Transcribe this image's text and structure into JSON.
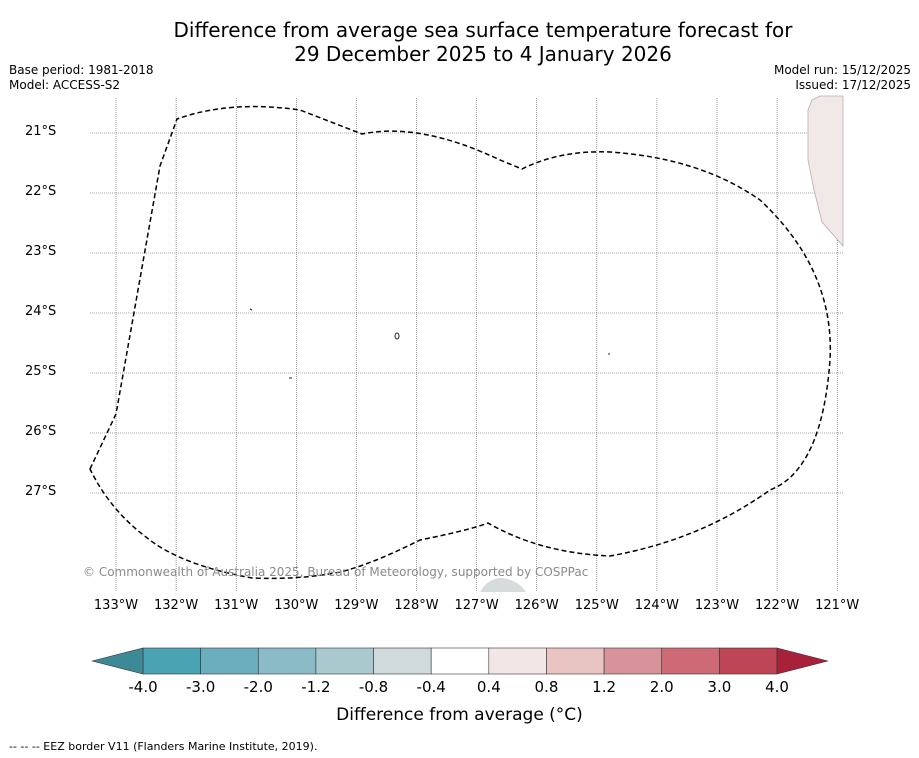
{
  "title_line1": "Difference from average sea surface temperature forecast for",
  "title_line2": "29 December 2025 to 4 January 2026",
  "base_period": "Base period: 1981-2018",
  "model": "Model: ACCESS-S2",
  "model_run": "Model run: 15/12/2025",
  "issued": "Issued: 17/12/2025",
  "latitudes": [
    "21°S",
    "22°S",
    "23°S",
    "24°S",
    "25°S",
    "26°S",
    "27°S"
  ],
  "longitudes": [
    "133°W",
    "132°W",
    "131°W",
    "130°W",
    "129°W",
    "128°W",
    "127°W",
    "126°W",
    "125°W",
    "124°W",
    "123°W",
    "122°W",
    "121°W"
  ],
  "copyright": "© Commonwealth of Australia 2025, Bureau of Meteorology, supported by COSPPac",
  "colorbar": {
    "title": "Difference from average (°C)",
    "labels": [
      "-4.0",
      "-3.0",
      "-2.0",
      "-1.2",
      "-0.8",
      "-0.4",
      "0.4",
      "0.8",
      "1.2",
      "2.0",
      "3.0",
      "4.0"
    ],
    "colors": [
      "#4aa3b3",
      "#6caebd",
      "#8bbbc6",
      "#a9c9ce",
      "#d0d9db",
      "#ffffff",
      "#f2e7e6",
      "#e8c5c3",
      "#d8939a",
      "#cd6a75",
      "#be4556"
    ],
    "under_color": "#3d8a96",
    "over_color": "#a8213a"
  },
  "footer": "-- -- -- EEZ border V11 (Flanders Marine Institute, 2019)."
}
